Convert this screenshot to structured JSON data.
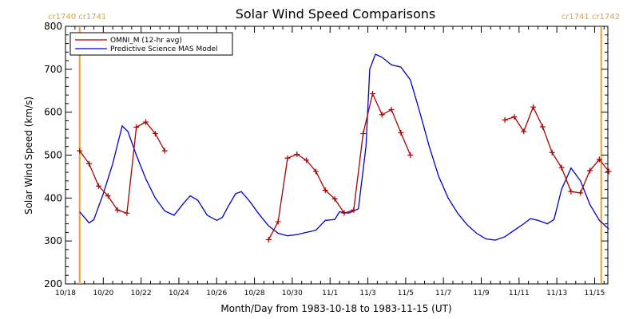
{
  "chart_data": {
    "type": "line",
    "title": "Solar Wind Speed Comparisons",
    "xlabel": "Month/Day from 1983-10-18 to 1983-11-15 (UT)",
    "ylabel": "Solar Wind Speed (km/s)",
    "xlim_days": [
      0,
      28.7
    ],
    "ylim": [
      200,
      800
    ],
    "yticks": [
      200,
      300,
      400,
      500,
      600,
      700,
      800
    ],
    "xtick_labels": [
      "10/18",
      "10/20",
      "10/22",
      "10/24",
      "10/26",
      "10/28",
      "10/30",
      "11/1",
      "11/3",
      "11/5",
      "11/7",
      "11/9",
      "11/11",
      "11/13",
      "11/15"
    ],
    "xtick_days": [
      0,
      2,
      4,
      6,
      8,
      10,
      12,
      14,
      16,
      18,
      20,
      22,
      24,
      26,
      28
    ],
    "carrington_markers": [
      {
        "label": "cr1740 cr1741",
        "day": 0.75,
        "color": "#e8a030",
        "position": "left"
      },
      {
        "label": "cr1741 cr1742",
        "day": 28.35,
        "color": "#e8a030",
        "position": "right"
      }
    ],
    "legend_position": "top-left",
    "series": [
      {
        "name": "OMNI_M (12-hr avg)",
        "color": "#aa0000",
        "marker": "+",
        "segments": [
          [
            [
              0.75,
              510
            ],
            [
              1.25,
              480
            ],
            [
              1.75,
              428
            ],
            [
              2.25,
              405
            ],
            [
              2.75,
              372
            ],
            [
              3.25,
              365
            ],
            [
              3.75,
              565
            ],
            [
              4.25,
              577
            ],
            [
              4.75,
              550
            ],
            [
              5.25,
              510
            ]
          ],
          [
            [
              10.75,
              303
            ],
            [
              11.25,
              345
            ],
            [
              11.75,
              493
            ],
            [
              12.25,
              502
            ],
            [
              12.75,
              488
            ],
            [
              13.25,
              462
            ],
            [
              13.75,
              418
            ],
            [
              14.25,
              398
            ],
            [
              14.75,
              365
            ],
            [
              15.25,
              372
            ],
            [
              15.75,
              550
            ],
            [
              16.25,
              643
            ],
            [
              16.75,
              594
            ],
            [
              17.25,
              606
            ],
            [
              17.75,
              552
            ],
            [
              18.25,
              500
            ]
          ],
          [
            [
              23.25,
              582
            ],
            [
              23.75,
              589
            ],
            [
              24.25,
              555
            ],
            [
              24.75,
              612
            ],
            [
              25.25,
              566
            ],
            [
              25.75,
              506
            ],
            [
              26.25,
              471
            ],
            [
              26.75,
              415
            ],
            [
              27.25,
              412
            ],
            [
              27.75,
              464
            ],
            [
              28.25,
              490
            ],
            [
              28.75,
              462
            ]
          ]
        ]
      },
      {
        "name": "Predictive Science MAS Model",
        "color": "#0000cc",
        "points": [
          [
            0.75,
            368
          ],
          [
            1,
            355
          ],
          [
            1.25,
            342
          ],
          [
            1.5,
            350
          ],
          [
            2,
            410
          ],
          [
            2.5,
            480
          ],
          [
            3,
            568
          ],
          [
            3.3,
            555
          ],
          [
            3.75,
            500
          ],
          [
            4.25,
            445
          ],
          [
            4.75,
            400
          ],
          [
            5.25,
            370
          ],
          [
            5.75,
            360
          ],
          [
            6.25,
            388
          ],
          [
            6.6,
            405
          ],
          [
            7,
            395
          ],
          [
            7.5,
            360
          ],
          [
            8,
            348
          ],
          [
            8.3,
            355
          ],
          [
            8.6,
            380
          ],
          [
            9,
            410
          ],
          [
            9.3,
            415
          ],
          [
            9.7,
            395
          ],
          [
            10.25,
            362
          ],
          [
            10.75,
            335
          ],
          [
            11.25,
            318
          ],
          [
            11.75,
            312
          ],
          [
            12.25,
            315
          ],
          [
            12.75,
            320
          ],
          [
            13.25,
            325
          ],
          [
            13.75,
            348
          ],
          [
            14.25,
            350
          ],
          [
            14.5,
            368
          ],
          [
            15,
            365
          ],
          [
            15.5,
            375
          ],
          [
            15.9,
            520
          ],
          [
            16.1,
            700
          ],
          [
            16.4,
            735
          ],
          [
            16.75,
            728
          ],
          [
            17.25,
            710
          ],
          [
            17.75,
            705
          ],
          [
            18.25,
            675
          ],
          [
            18.75,
            600
          ],
          [
            19.25,
            520
          ],
          [
            19.75,
            450
          ],
          [
            20.25,
            400
          ],
          [
            20.75,
            365
          ],
          [
            21.25,
            338
          ],
          [
            21.75,
            318
          ],
          [
            22.25,
            305
          ],
          [
            22.75,
            302
          ],
          [
            23.25,
            310
          ],
          [
            23.75,
            325
          ],
          [
            24.25,
            340
          ],
          [
            24.6,
            352
          ],
          [
            25,
            348
          ],
          [
            25.5,
            340
          ],
          [
            25.85,
            350
          ],
          [
            26.25,
            420
          ],
          [
            26.75,
            470
          ],
          [
            27.25,
            440
          ],
          [
            27.75,
            385
          ],
          [
            28.25,
            348
          ],
          [
            28.75,
            328
          ]
        ]
      }
    ]
  }
}
